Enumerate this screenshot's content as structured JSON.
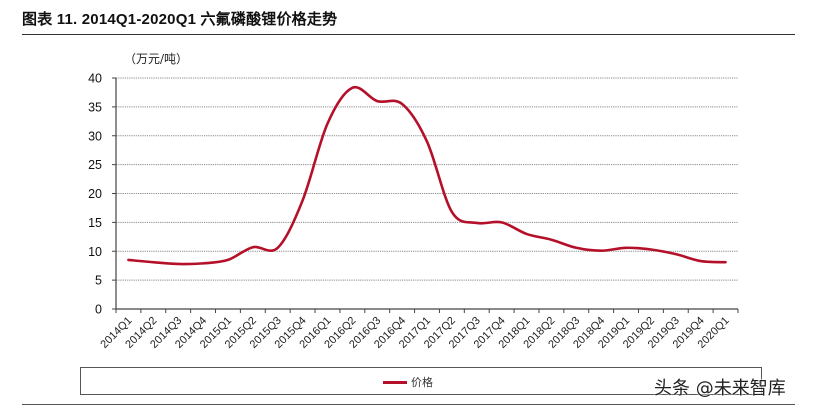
{
  "header": {
    "title": "图表 11. 2014Q1-2020Q1 六氟磷酸锂价格走势",
    "unit": "（万元/吨）"
  },
  "legend": {
    "items": [
      {
        "label": "价格",
        "color": "#b5102a"
      }
    ]
  },
  "watermark": "头条 @未来智库",
  "chart_data": {
    "type": "line",
    "title": "2014Q1-2020Q1 六氟磷酸锂价格走势",
    "xlabel": "",
    "ylabel": "（万元/吨）",
    "ylim": [
      0,
      40
    ],
    "yticks": [
      0,
      5,
      10,
      15,
      20,
      25,
      30,
      35,
      40
    ],
    "grid": true,
    "legend_position": "bottom",
    "categories": [
      "2014Q1",
      "2014Q2",
      "2014Q3",
      "2014Q4",
      "2015Q1",
      "2015Q2",
      "2015Q3",
      "2015Q4",
      "2016Q1",
      "2016Q2",
      "2016Q3",
      "2016Q4",
      "2017Q1",
      "2017Q2",
      "2017Q3",
      "2017Q4",
      "2018Q1",
      "2018Q2",
      "2018Q3",
      "2018Q4",
      "2019Q1",
      "2019Q2",
      "2019Q3",
      "2019Q4",
      "2020Q1"
    ],
    "series": [
      {
        "name": "价格",
        "color": "#b5102a",
        "values": [
          8.5,
          8.1,
          7.8,
          7.9,
          8.5,
          10.7,
          10.6,
          18.8,
          32.1,
          38.3,
          36.0,
          35.5,
          29.0,
          16.8,
          14.9,
          15.0,
          13.0,
          12.0,
          10.6,
          10.1,
          10.6,
          10.3,
          9.5,
          8.3,
          8.1
        ]
      }
    ]
  }
}
